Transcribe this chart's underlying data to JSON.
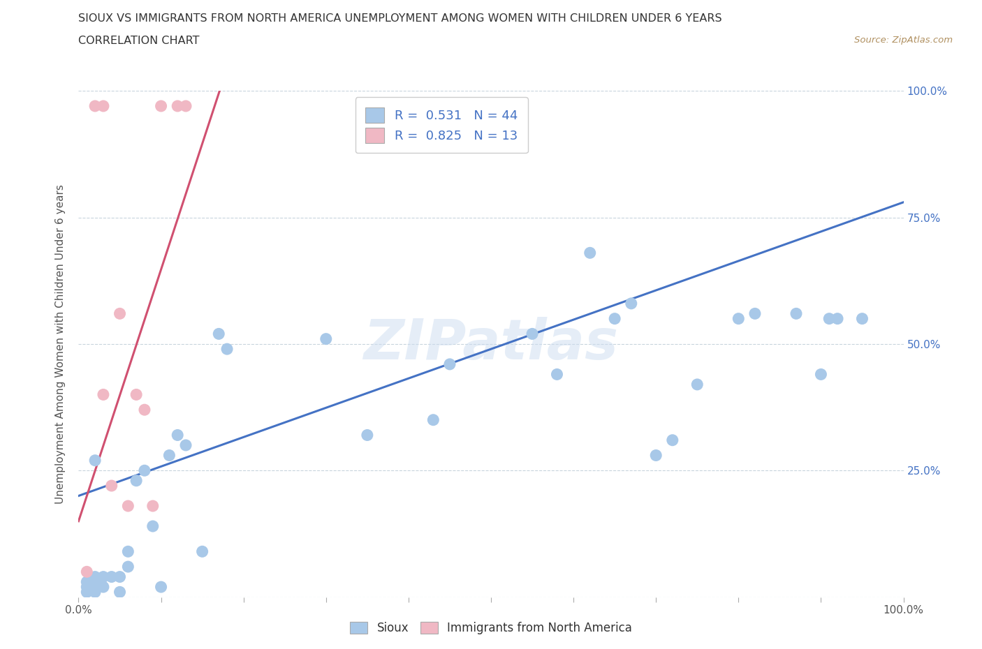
{
  "title_line1": "SIOUX VS IMMIGRANTS FROM NORTH AMERICA UNEMPLOYMENT AMONG WOMEN WITH CHILDREN UNDER 6 YEARS",
  "title_line2": "CORRELATION CHART",
  "source_text": "Source: ZipAtlas.com",
  "ylabel": "Unemployment Among Women with Children Under 6 years",
  "xlim": [
    0,
    1.0
  ],
  "ylim": [
    0,
    1.0
  ],
  "ytick_labels": [
    "",
    "25.0%",
    "50.0%",
    "75.0%",
    "100.0%"
  ],
  "ytick_positions": [
    0.0,
    0.25,
    0.5,
    0.75,
    1.0
  ],
  "sioux_color": "#a8c8e8",
  "immigrants_color": "#f0b8c4",
  "sioux_line_color": "#4472c4",
  "immigrants_line_color": "#d05070",
  "legend_box_sioux": "#a8c8e8",
  "legend_box_immigrants": "#f0b8c4",
  "R_sioux": 0.531,
  "N_sioux": 44,
  "R_immigrants": 0.825,
  "N_immigrants": 13,
  "watermark": "ZIPatlas",
  "sioux_x": [
    0.01,
    0.01,
    0.01,
    0.02,
    0.02,
    0.02,
    0.02,
    0.02,
    0.03,
    0.03,
    0.04,
    0.05,
    0.05,
    0.06,
    0.06,
    0.07,
    0.08,
    0.09,
    0.1,
    0.11,
    0.12,
    0.13,
    0.15,
    0.17,
    0.18,
    0.3,
    0.35,
    0.43,
    0.45,
    0.55,
    0.58,
    0.62,
    0.65,
    0.67,
    0.7,
    0.72,
    0.75,
    0.8,
    0.82,
    0.87,
    0.9,
    0.91,
    0.92,
    0.95
  ],
  "sioux_y": [
    0.01,
    0.02,
    0.03,
    0.01,
    0.02,
    0.03,
    0.04,
    0.27,
    0.02,
    0.04,
    0.04,
    0.01,
    0.04,
    0.06,
    0.09,
    0.23,
    0.25,
    0.14,
    0.02,
    0.28,
    0.32,
    0.3,
    0.09,
    0.52,
    0.49,
    0.51,
    0.32,
    0.35,
    0.46,
    0.52,
    0.44,
    0.68,
    0.55,
    0.58,
    0.28,
    0.31,
    0.42,
    0.55,
    0.56,
    0.56,
    0.44,
    0.55,
    0.55,
    0.55
  ],
  "immigrants_x": [
    0.01,
    0.02,
    0.03,
    0.03,
    0.04,
    0.05,
    0.06,
    0.07,
    0.08,
    0.09,
    0.1,
    0.12,
    0.13
  ],
  "immigrants_y": [
    0.05,
    0.97,
    0.97,
    0.4,
    0.22,
    0.56,
    0.18,
    0.4,
    0.37,
    0.18,
    0.97,
    0.97,
    0.97
  ],
  "sioux_trend_x": [
    0.0,
    1.0
  ],
  "sioux_trend_y": [
    0.2,
    0.78
  ],
  "immigrants_trend_x": [
    0.0,
    0.175
  ],
  "immigrants_trend_y": [
    0.15,
    1.02
  ],
  "grid_color": "#c8d4dc",
  "background_color": "#ffffff"
}
